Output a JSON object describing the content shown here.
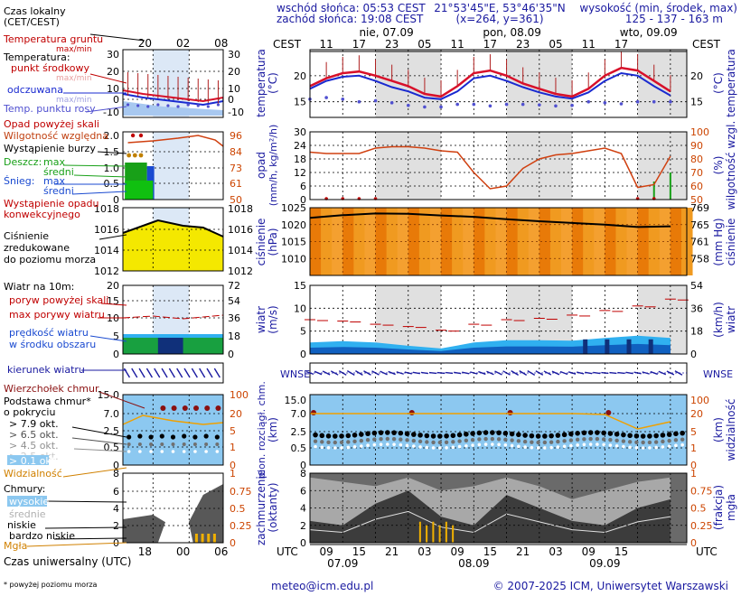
{
  "header": {
    "sunrise": "wschód słońca: 05:53 CEST",
    "sunset": "zachód słońca: 19:08 CEST",
    "coords": "21°53'45\"E, 53°46'35\"N",
    "grid": "(x=264,  y=361)",
    "elev_label": "wysokość (min, środek, max)",
    "elev_values": "125 - 137 - 163 m"
  },
  "legend": {
    "local_time": "Czas lokalny",
    "local_time2": "(CET/CEST)",
    "soil_temp": "Temperatura gruntu",
    "maxmin": "max/min",
    "temperature": "Temperatura:",
    "mid_point": "punkt środkowy",
    "maxmin2": "max/min",
    "perceived": "odczuwana",
    "maxmin3": "max/min",
    "dew_point": "Temp. punktu rosy",
    "precip_over": "Opad powyżej skali",
    "rel_humidity": "Wilgotność względna",
    "storm": "Wystąpienie burzy",
    "rain": "Deszcz:",
    "rain_max": "max",
    "rain_mean": "średni",
    "snow": "Śnieg:",
    "snow_max": "max",
    "snow_mean": "średni",
    "convective1": "Wystąpienie opadu",
    "convective2": "konwekcyjnego",
    "pressure1": "Ciśnienie",
    "pressure2": "zredukowane",
    "pressure3": "do poziomu morza",
    "wind_10m": "Wiatr na 10m:",
    "gusts_over": "poryw powyżej skali",
    "max_gusts": "max porywy wiatru",
    "wind_speed1": "prędkość wiatru",
    "wind_speed2": "w środku obszaru",
    "wind_dir": "kierunek wiatru",
    "cloud_top": "Wierzchołek chmur",
    "cloud_base1": "Podstawa chmur*",
    "cloud_base2": "o pokryciu",
    "okt79": "> 7.9 okt.",
    "okt65": "> 6.5 okt.",
    "okt45": "> 4.5 okt.",
    "okt25": "> 2.5 okt.",
    "okt01": "> 0.1 okt.",
    "visibility": "Widzialność",
    "clouds": "Chmury:",
    "high": "wysokie",
    "medium": "średnie",
    "low": "niskie",
    "very_low": "bardzo niskie",
    "fog": "Mgła",
    "utc_time": "Czas uniwersalny (UTC)",
    "footnote": "* powyżej poziomu morza"
  },
  "legend_axes": {
    "top_hours": [
      "20",
      "02",
      "08"
    ],
    "bottom_hours": [
      "18",
      "00",
      "06"
    ],
    "temp_ticks": [
      "30",
      "20",
      "10",
      "0",
      "-10"
    ],
    "precip_ticks": [
      "2.0",
      "1.5",
      "1.0",
      "0.5",
      "0"
    ],
    "hum_ticks": [
      "96",
      "84",
      "73",
      "61",
      "50"
    ],
    "press_ticks": [
      "1018",
      "1016",
      "1014",
      "1012"
    ],
    "wind_ticks": [
      "20",
      "15",
      "10",
      "5",
      "0"
    ],
    "wind_r_ticks": [
      "72",
      "54",
      "36",
      "18",
      "0"
    ],
    "cloud_ticks": [
      "15.0",
      "7.0",
      "2.5",
      "0.5",
      "0"
    ],
    "vis_ticks": [
      "100",
      "20",
      "5",
      "1",
      "0"
    ],
    "okt_ticks": [
      "8",
      "6",
      "4",
      "2",
      "0"
    ],
    "frac_ticks": [
      "1",
      "0.75",
      "0.5",
      "0.25",
      "0"
    ]
  },
  "main_axes": {
    "cest": "CEST",
    "utc": "UTC",
    "days_top": [
      "nie, 07.09",
      "pon, 08.09",
      "wto, 09.09"
    ],
    "hours_top": [
      "11",
      "17",
      "23",
      "05",
      "11",
      "17",
      "23",
      "05",
      "11",
      "17"
    ],
    "hours_bottom": [
      "09",
      "15",
      "21",
      "03",
      "09",
      "15",
      "21",
      "03",
      "09",
      "15"
    ],
    "days_bottom": [
      "07.09",
      "08.09",
      "09.09"
    ],
    "temp_ticks": [
      "20",
      "15"
    ],
    "precip_ticks": [
      "30",
      "24",
      "18",
      "12",
      "6",
      "0"
    ],
    "hum_ticks": [
      "100",
      "90",
      "80",
      "70",
      "60",
      "50"
    ],
    "press_ticks": [
      "1025",
      "1020",
      "1015",
      "1010"
    ],
    "press_mm_ticks": [
      "769",
      "765",
      "761",
      "758"
    ],
    "wind_ticks": [
      "15",
      "10",
      "5",
      "0"
    ],
    "wind_kmh_ticks": [
      "54",
      "36",
      "18",
      "0"
    ],
    "cloud_ticks": [
      "15.0",
      "7.0",
      "2.5",
      "0.5",
      "0"
    ],
    "vis_ticks": [
      "100",
      "20",
      "5",
      "1",
      "0"
    ],
    "okt_ticks": [
      "8",
      "6",
      "4",
      "2",
      "0"
    ],
    "frac_ticks": [
      "1",
      "0.75",
      "0.5",
      "0.25",
      "0"
    ]
  },
  "panel_labels": {
    "temp_l": "temperatura",
    "temp_l_u": "(°C)",
    "temp_r": "temperatura",
    "temp_r_u": "(°C)",
    "precip_l": "opad",
    "precip_l_u": "(mm/h, kg/m²/h)",
    "hum_r": "wilgotność wzgl.",
    "hum_r_u": "(%)",
    "press_l": "ciśnienie",
    "press_l_u": "(hPa)",
    "press_r": "ciśnienie",
    "press_r_u": "(mm Hg)",
    "wind_l": "wiatr",
    "wind_l_u": "(m/s)",
    "wind_r": "wiatr",
    "wind_r_u": "(km/h)",
    "wdir_l": "WNSE",
    "wdir_r": "WNSE",
    "cloud_l": "pion. rozciągł. chm.",
    "cloud_l_u": "(km)",
    "vis_r": "widzialność",
    "vis_r_u": "(km)",
    "cover_l": "zachmurzenie",
    "cover_l_u": "(oktanty)",
    "fog_r": "mgła",
    "fog_r_u": "(frakcja)"
  },
  "footer": {
    "email": "meteo@icm.edu.pl",
    "copyright": "© 2007-2025 ICM, Uniwersytet Warszawski"
  },
  "colors": {
    "title_blue": "#1a1aa0",
    "title_red": "#c00000",
    "label_orange": "#cc4400",
    "temp_red": "#d8102a",
    "perceived_blue": "#1a2ad0",
    "dew_point": "#5050d0",
    "pressure_fill": "#f4e800",
    "precip_green": "#18a018",
    "precip_blue": "#1a4ad0",
    "humidity_line": "#d04010",
    "wind_light": "#30b0f0",
    "wind_dark": "#10307a",
    "cloud_bg": "#8cc8f0",
    "vis_line": "#f0a000",
    "fog_bar": "#f0b000",
    "night_band": "#e0e0e0",
    "legend_band": "#dce8f6"
  },
  "chart_data": [
    {
      "type": "line",
      "title": "temperatura",
      "ylabel": "temperatura (°C)",
      "ylim": [
        12,
        25
      ],
      "x_hours_utc_from_start": [
        0,
        3,
        6,
        9,
        12,
        15,
        18,
        21,
        24,
        27,
        30,
        33,
        36,
        39,
        42,
        45,
        48,
        51,
        54,
        57,
        60,
        63,
        66
      ],
      "series": [
        {
          "name": "punkt środkowy",
          "values": [
            18.0,
            19.5,
            20.5,
            20.8,
            20.0,
            19.0,
            18.0,
            16.5,
            16.0,
            18.0,
            20.5,
            21.0,
            20.0,
            18.5,
            17.5,
            16.5,
            16.0,
            17.5,
            20.0,
            21.5,
            21.0,
            19.0,
            17.0
          ]
        },
        {
          "name": "odczuwana",
          "values": [
            17.5,
            19.0,
            19.8,
            20.0,
            19.0,
            17.8,
            17.0,
            15.8,
            15.5,
            17.0,
            19.5,
            20.0,
            19.0,
            17.8,
            16.8,
            16.0,
            15.6,
            16.8,
            19.0,
            20.5,
            20.0,
            18.0,
            16.2
          ]
        },
        {
          "name": "Temp. punktu rosy",
          "values": [
            15.5,
            15.8,
            15.5,
            15.0,
            15.2,
            14.8,
            14.3,
            14.0,
            14.0,
            14.5,
            14.5,
            14.2,
            14.5,
            14.5,
            14.4,
            14.2,
            14.3,
            15.0,
            14.8,
            14.6,
            15.0,
            15.0,
            15.0
          ]
        }
      ]
    },
    {
      "type": "bar",
      "title": "opad i wilgotność względna",
      "ylabel": "opad (mm/h, kg/m²/h)",
      "ylim": [
        0,
        30
      ],
      "y2label": "wilgotność wzgl. (%)",
      "y2lim": [
        50,
        100
      ],
      "x_hours_utc_from_start": [
        0,
        3,
        6,
        9,
        12,
        15,
        18,
        21,
        24,
        27,
        30,
        33,
        36,
        39,
        42,
        45,
        48,
        51,
        54,
        57,
        60,
        63,
        66
      ],
      "series": [
        {
          "name": "Wilgotność względna",
          "values": [
            85,
            84,
            84,
            84,
            88,
            89,
            89,
            88,
            86,
            85,
            70,
            58,
            60,
            73,
            80,
            83,
            84,
            86,
            88,
            84,
            59,
            61,
            82
          ]
        },
        {
          "name": "Deszcz max",
          "values": [
            0,
            0,
            0,
            0,
            0,
            0,
            0,
            0,
            0,
            0,
            0,
            0,
            0,
            0,
            0,
            0,
            0,
            0,
            0,
            0,
            0,
            8,
            12
          ]
        }
      ]
    },
    {
      "type": "area",
      "title": "ciśnienie",
      "ylabel": "ciśnienie (hPa)",
      "ylim": [
        1005,
        1025
      ],
      "x_hours_utc_from_start": [
        0,
        6,
        12,
        18,
        24,
        30,
        36,
        42,
        48,
        54,
        60,
        66
      ],
      "series": [
        {
          "name": "ciśnienie zredukowane",
          "values": [
            1022.0,
            1022.8,
            1023.3,
            1023.2,
            1022.7,
            1022.3,
            1021.6,
            1021.0,
            1020.5,
            1020.0,
            1019.3,
            1019.5
          ]
        }
      ]
    },
    {
      "type": "line",
      "title": "wiatr",
      "ylabel": "wiatr (m/s)",
      "ylim": [
        0,
        15
      ],
      "x_hours_utc_from_start": [
        0,
        6,
        12,
        18,
        24,
        30,
        36,
        42,
        48,
        54,
        60,
        66
      ],
      "series": [
        {
          "name": "max porywy wiatru",
          "values": [
            7.5,
            7.2,
            6.5,
            6.0,
            5.2,
            6.5,
            7.5,
            7.8,
            8.5,
            9.5,
            10.5,
            12.0
          ]
        },
        {
          "name": "prędkość wiatru",
          "values": [
            2.5,
            2.8,
            2.5,
            1.8,
            1.2,
            2.5,
            3.0,
            3.0,
            2.9,
            3.5,
            4.0,
            3.5
          ]
        }
      ]
    },
    {
      "type": "scatter",
      "title": "chmury i widzialność",
      "ylabel": "pion. rozciągł. chm. (km)",
      "ylim": [
        0,
        15
      ],
      "y2label": "widzialność (km)",
      "y2lim": [
        0,
        100
      ],
      "x_hours_utc_from_start": [
        0,
        6,
        12,
        18,
        24,
        30,
        36,
        42,
        48,
        54,
        60,
        66
      ],
      "series": [
        {
          "name": "Wierzchołek chmur",
          "values": [
            8.0,
            8.0,
            8.0,
            7.5,
            7.5,
            7.5,
            7.5,
            7.5,
            7.5,
            7.5,
            7.0,
            7.0
          ]
        },
        {
          "name": "Podstawa > 7.9 okt.",
          "values": [
            0.9,
            1.2,
            1.4,
            1.5,
            1.6,
            1.6,
            1.7,
            1.6,
            1.6,
            1.7,
            1.4,
            1.0
          ]
        },
        {
          "name": "Widzialność",
          "values": [
            30,
            30,
            30,
            30,
            30,
            30,
            30,
            30,
            30,
            30,
            15,
            20
          ]
        }
      ]
    },
    {
      "type": "area",
      "title": "zachmurzenie",
      "ylabel": "zachmurzenie (oktanty)",
      "ylim": [
        0,
        8
      ],
      "y2label": "mgła (frakcja)",
      "y2lim": [
        0,
        1
      ],
      "x_hours_utc_from_start": [
        0,
        6,
        12,
        18,
        24,
        30,
        36,
        42,
        48,
        54,
        60,
        66
      ],
      "series": [
        {
          "name": "wysokie",
          "values": [
            7.5,
            7.0,
            6.5,
            7.5,
            6.0,
            6.5,
            7.5,
            6.5,
            5.0,
            6.0,
            7.0,
            7.5
          ]
        },
        {
          "name": "niskie",
          "values": [
            2.5,
            2.0,
            4.5,
            6.0,
            3.0,
            2.0,
            5.5,
            4.0,
            2.5,
            2.0,
            4.0,
            5.0
          ]
        },
        {
          "name": "Mgła",
          "values": [
            0,
            0,
            0,
            0.2,
            0,
            0,
            0,
            0,
            0,
            0,
            0,
            0.1
          ]
        }
      ]
    }
  ]
}
